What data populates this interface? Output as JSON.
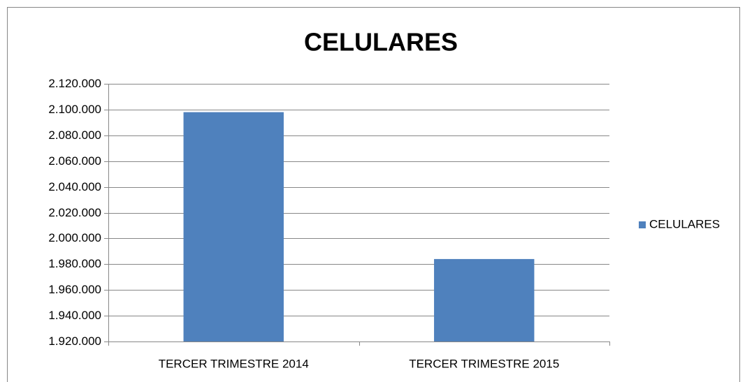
{
  "chart_data": {
    "type": "bar",
    "title": "CELULARES",
    "categories": [
      "TERCER TRIMESTRE 2014",
      "TERCER TRIMESTRE 2015"
    ],
    "series": [
      {
        "name": "CELULARES",
        "color": "#4f81bd",
        "values": [
          2098000,
          1984000
        ]
      }
    ],
    "ylim": [
      1920000,
      2120000
    ],
    "yticks": [
      {
        "value": 1920000,
        "label": "1.920.000"
      },
      {
        "value": 1940000,
        "label": "1.940.000"
      },
      {
        "value": 1960000,
        "label": "1.960.000"
      },
      {
        "value": 1980000,
        "label": "1.980.000"
      },
      {
        "value": 2000000,
        "label": "2.000.000"
      },
      {
        "value": 2020000,
        "label": "2.020.000"
      },
      {
        "value": 2040000,
        "label": "2.040.000"
      },
      {
        "value": 2060000,
        "label": "2.060.000"
      },
      {
        "value": 2080000,
        "label": "2.080.000"
      },
      {
        "value": 2100000,
        "label": "2.100.000"
      },
      {
        "value": 2120000,
        "label": "2.120.000"
      }
    ],
    "grid": true,
    "legend": "right"
  }
}
